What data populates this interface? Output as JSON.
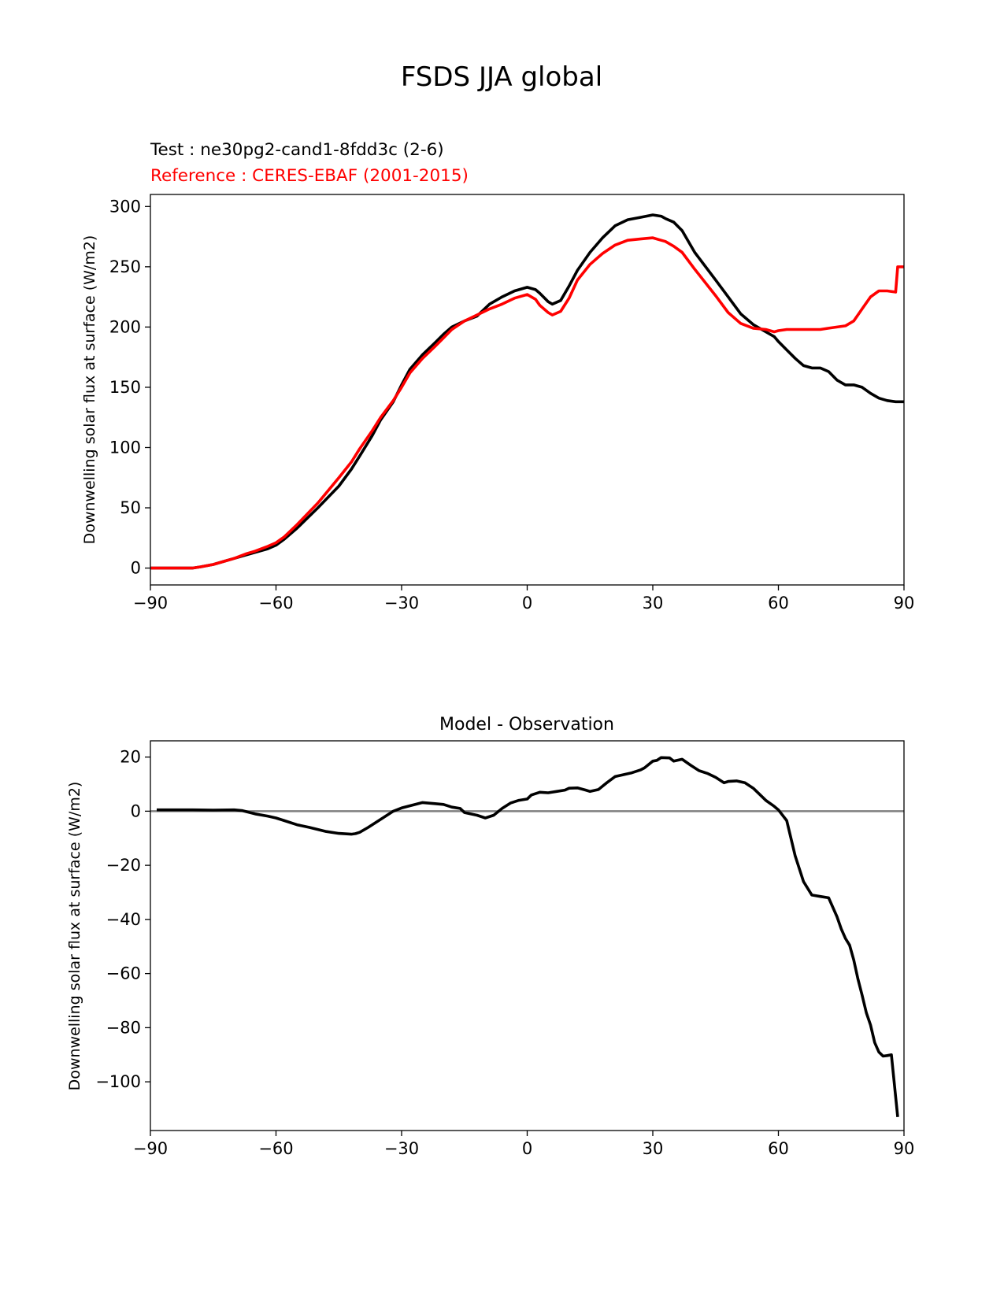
{
  "figure": {
    "title": "FSDS JJA global"
  },
  "chart_data": [
    {
      "type": "line",
      "test_label": "Test : ne30pg2-cand1-8fdd3c (2-6)",
      "reference_label": "Reference : CERES-EBAF (2001-2015)",
      "xlabel": "",
      "ylabel": "Downwelling solar flux at surface (W/m2)",
      "xlim": [
        -90,
        90
      ],
      "ylim": [
        -14,
        310
      ],
      "xticks": [
        -90,
        -60,
        -30,
        0,
        30,
        60,
        90
      ],
      "yticks": [
        0,
        50,
        100,
        150,
        200,
        250,
        300
      ],
      "series": [
        {
          "color": "#000000",
          "x": [
            -90,
            -85,
            -80,
            -78,
            -75,
            -72,
            -70,
            -67,
            -65,
            -62,
            -60,
            -58,
            -55,
            -50,
            -45,
            -42,
            -40,
            -37,
            -35,
            -32,
            -30,
            -28,
            -25,
            -22,
            -20,
            -18,
            -15,
            -12,
            -9,
            -6,
            -3,
            0,
            2,
            3,
            5,
            6,
            8,
            10,
            12,
            15,
            18,
            21,
            24,
            27,
            30,
            32,
            33,
            35,
            37,
            40,
            45,
            48,
            51,
            54,
            57,
            59,
            60,
            62,
            64,
            66,
            68,
            70,
            72,
            74,
            76,
            78,
            80,
            82,
            84,
            86,
            88,
            90
          ],
          "y": [
            0,
            0,
            0,
            1,
            3,
            6,
            8,
            11,
            13,
            16,
            19,
            24,
            33,
            50,
            68,
            82,
            93,
            110,
            123,
            138,
            152,
            165,
            177,
            187,
            194,
            200,
            205,
            209,
            219,
            225,
            230,
            233,
            231,
            228,
            221,
            219,
            222,
            234,
            247,
            262,
            274,
            284,
            289,
            291,
            293,
            292,
            290,
            287,
            280,
            262,
            239,
            225,
            211,
            202,
            196,
            192,
            188,
            181,
            174,
            168,
            166,
            166,
            163,
            156,
            152,
            152,
            150,
            145,
            141,
            139,
            138,
            138
          ]
        },
        {
          "color": "#ff0000",
          "x": [
            -90,
            -85,
            -80,
            -78,
            -75,
            -72,
            -70,
            -67,
            -65,
            -62,
            -60,
            -58,
            -55,
            -50,
            -45,
            -42,
            -40,
            -37,
            -35,
            -32,
            -30,
            -28,
            -25,
            -22,
            -20,
            -18,
            -15,
            -12,
            -9,
            -6,
            -3,
            0,
            2,
            3,
            5,
            6,
            8,
            10,
            12,
            15,
            18,
            21,
            24,
            27,
            30,
            32,
            33,
            35,
            37,
            40,
            45,
            48,
            51,
            54,
            57,
            59,
            60,
            62,
            64,
            66,
            68,
            70,
            72,
            74,
            76,
            78,
            80,
            82,
            84,
            86,
            88,
            88.5,
            90
          ],
          "y": [
            0,
            0,
            0,
            1,
            3,
            6,
            8,
            12,
            14,
            18,
            21,
            26,
            36,
            54,
            75,
            88,
            99,
            114,
            125,
            139,
            150,
            162,
            174,
            184,
            191,
            198,
            205,
            210,
            215,
            219,
            224,
            227,
            223,
            218,
            212,
            210,
            213,
            224,
            239,
            252,
            261,
            268,
            272,
            273,
            274,
            272,
            271,
            267,
            262,
            248,
            226,
            212,
            203,
            199,
            198,
            196,
            197,
            198,
            198,
            198,
            198,
            198,
            199,
            200,
            201,
            205,
            215,
            225,
            230,
            230,
            229,
            250,
            250
          ]
        }
      ]
    },
    {
      "type": "line",
      "title": "Model - Observation",
      "xlabel": "",
      "ylabel": "Downwelling solar flux at surface (W/m2)",
      "xlim": [
        -90,
        90
      ],
      "ylim": [
        -118,
        26
      ],
      "xticks": [
        -90,
        -60,
        -30,
        0,
        30,
        60,
        90
      ],
      "yticks": [
        -100,
        -80,
        -60,
        -40,
        -20,
        0,
        20
      ],
      "zero_line_color": "#808080",
      "series": [
        {
          "color": "#000000",
          "x": [
            -88.5,
            -80,
            -75,
            -70,
            -68,
            -65,
            -62,
            -60,
            -58,
            -55,
            -52,
            -48,
            -45,
            -42,
            -41,
            -40,
            -38,
            -35,
            -32,
            -30,
            -28,
            -25,
            -22,
            -20,
            -18,
            -16,
            -15,
            -12,
            -10,
            -8,
            -6,
            -4,
            -2,
            0,
            1,
            3,
            5,
            7,
            9,
            10,
            12,
            14,
            15,
            17,
            19,
            21,
            23,
            25,
            27,
            28,
            30,
            31,
            32,
            34,
            35,
            37,
            39,
            41,
            43,
            45,
            47,
            48,
            50,
            52,
            54,
            57,
            59,
            60,
            62,
            64,
            66,
            68,
            70,
            72,
            74,
            75,
            76,
            77,
            78,
            79,
            80,
            81,
            82,
            83,
            84,
            85,
            86,
            87,
            88.5
          ],
          "y": [
            0.5,
            0.5,
            0.4,
            0.5,
            0.2,
            -1,
            -1.8,
            -2.5,
            -3.5,
            -5,
            -6,
            -7.5,
            -8.2,
            -8.5,
            -8.3,
            -7.8,
            -6,
            -3,
            0,
            1.2,
            2,
            3.2,
            2.8,
            2.5,
            1.5,
            1,
            -0.5,
            -1.5,
            -2.5,
            -1.5,
            1,
            3,
            4,
            4.5,
            6,
            7,
            6.8,
            7.3,
            7.8,
            8.5,
            8.6,
            7.8,
            7.3,
            8,
            10.5,
            12.8,
            13.5,
            14.2,
            15.2,
            16,
            18.5,
            18.8,
            19.8,
            19.7,
            18.5,
            19.2,
            17,
            15,
            14,
            12.5,
            10.5,
            11,
            11.2,
            10.5,
            8.5,
            4,
            1.8,
            0.5,
            -3.5,
            -16.5,
            -26,
            -31,
            -31.5,
            -32,
            -39,
            -43.5,
            -47,
            -49.5,
            -55,
            -62,
            -68,
            -74.5,
            -79,
            -85.5,
            -89,
            -90.5,
            -90.3,
            -90,
            -113
          ]
        }
      ]
    }
  ]
}
